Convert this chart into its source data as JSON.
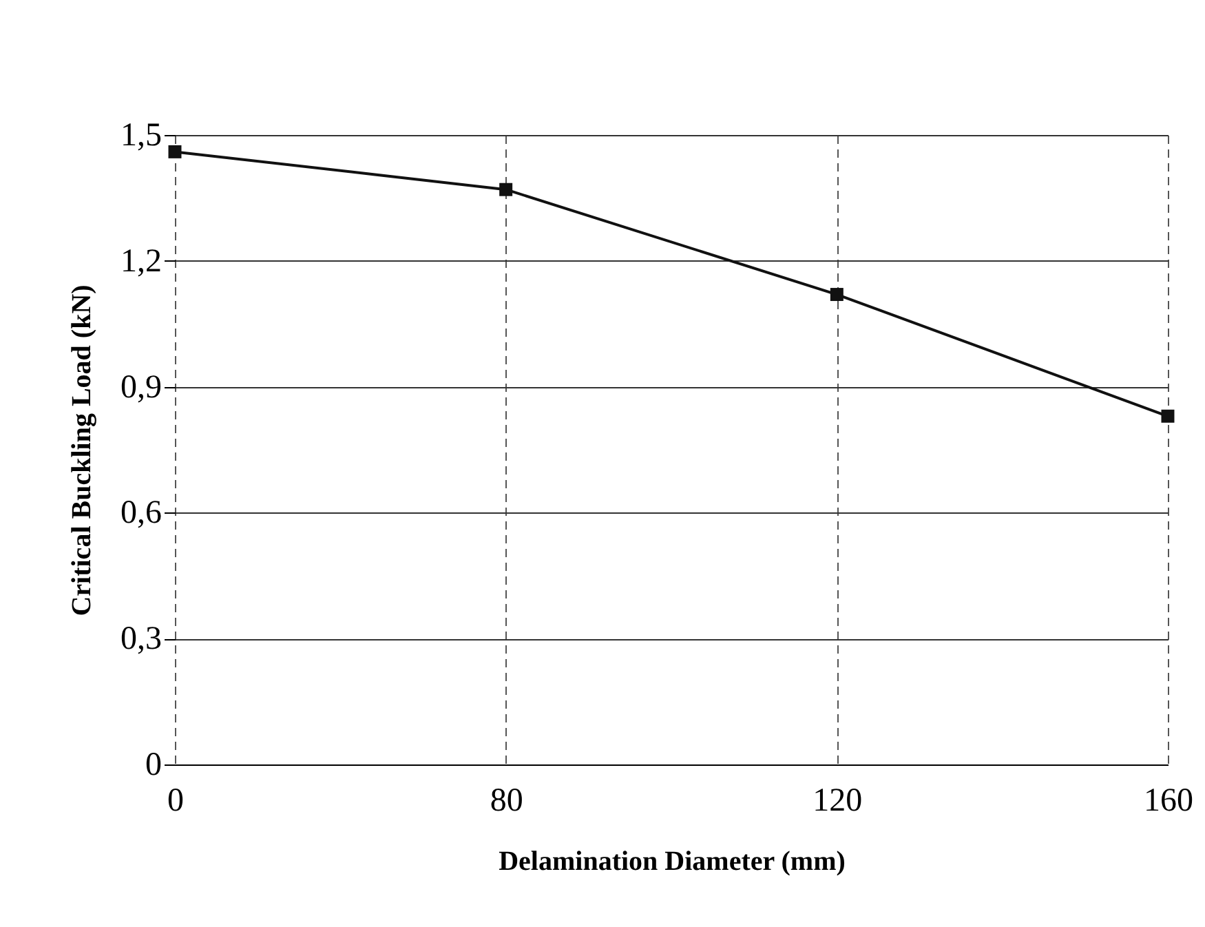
{
  "chart_data": {
    "type": "line",
    "xlabel": "Delamination Diameter (mm)",
    "ylabel": "Critical Buckling Load (kN)",
    "categories": [
      "0",
      "80",
      "120",
      "160"
    ],
    "series": [
      {
        "color": "#111111",
        "values": [
          1.46,
          1.37,
          1.12,
          0.83
        ]
      }
    ],
    "ylim": [
      0,
      1.5
    ],
    "yticks": [
      0,
      {
        "value": 0.3,
        "label": "0,3"
      },
      {
        "value": 0.6,
        "label": "0,6"
      },
      {
        "value": 0.9,
        "label": "0,9"
      },
      {
        "value": 1.2,
        "label": "1,2"
      },
      {
        "value": 1.5,
        "label": "1,5"
      }
    ],
    "grid": true,
    "marker": "square",
    "line_style": "solid"
  }
}
